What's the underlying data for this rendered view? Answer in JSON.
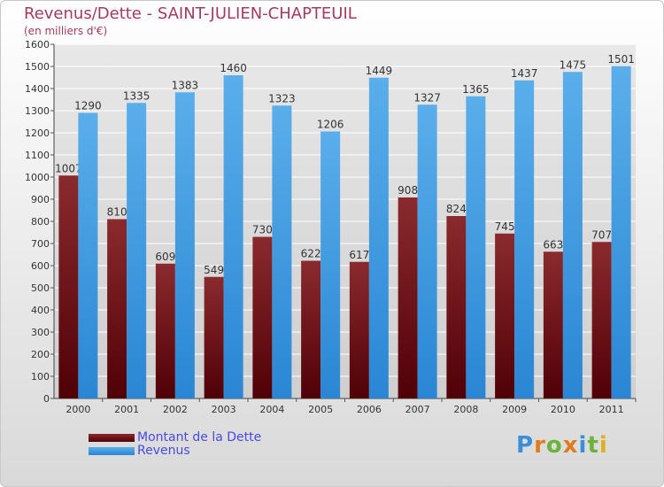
{
  "title": "Revenus/Dette - SAINT-JULIEN-CHAPTEUIL",
  "subtitle": "(en milliers d'€)",
  "logo": "Proxiti",
  "colors": {
    "dette": "#6b0b12",
    "revenus": "#3d9be6",
    "title": "#a33a5f",
    "legend_text": "#4a4adf",
    "grid": "#ffffff"
  },
  "chart_data": {
    "type": "bar",
    "categories": [
      "2000",
      "2001",
      "2002",
      "2003",
      "2004",
      "2005",
      "2006",
      "2007",
      "2008",
      "2009",
      "2010",
      "2011"
    ],
    "series": [
      {
        "name": "Montant de la Dette",
        "values": [
          1007,
          810,
          609,
          549,
          730,
          622,
          617,
          908,
          824,
          745,
          663,
          707
        ]
      },
      {
        "name": "Revenus",
        "values": [
          1290,
          1335,
          1383,
          1460,
          1323,
          1206,
          1449,
          1327,
          1365,
          1437,
          1475,
          1501
        ]
      }
    ],
    "data_labels": [
      [
        "1007",
        "810",
        "609",
        "549",
        "730",
        "622",
        "617",
        "908",
        "824",
        "745",
        "663",
        "707"
      ],
      [
        "1290",
        "1335",
        "1383",
        "1460",
        "1323",
        "1206",
        "1449",
        "1327",
        "1365",
        "1437",
        "1475",
        "1501"
      ]
    ],
    "ylim": [
      0,
      1600
    ],
    "yticks": [
      "0",
      "100",
      "200",
      "300",
      "400",
      "500",
      "600",
      "700",
      "800",
      "900",
      "1000",
      "1100",
      "1200",
      "1300",
      "1400",
      "1500",
      "1600"
    ],
    "grid": true,
    "legend_position": "bottom-left"
  }
}
